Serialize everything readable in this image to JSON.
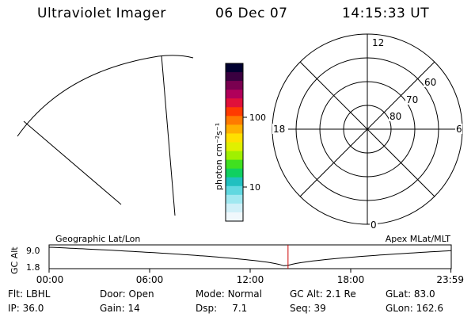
{
  "header": {
    "instrument": "Ultraviolet Imager",
    "date": "06 Dec 07",
    "time": "14:15:33 UT"
  },
  "colorbar": {
    "unit_label": "photon cm⁻²s⁻¹",
    "ticks": [
      {
        "label": "100",
        "value": 100
      },
      {
        "label": "10",
        "value": 10
      }
    ],
    "colors": [
      "#000030",
      "#3a0040",
      "#7a0050",
      "#b0005a",
      "#e0103a",
      "#ff3a00",
      "#ff7a00",
      "#ffb000",
      "#ffe000",
      "#e0f000",
      "#a0f000",
      "#40e020",
      "#10d060",
      "#20c0c0",
      "#60d8e0",
      "#a0e8f0",
      "#d0f0f8",
      "#f0f8fc"
    ]
  },
  "polar_plot": {
    "clock_labels": {
      "top": "12",
      "bottom": "0",
      "left": "18",
      "right": "6"
    },
    "latitude_labels": [
      "80",
      "70",
      "60"
    ]
  },
  "timeline": {
    "left_title": "Geographic Lat/Lon",
    "right_title": "Apex MLat/MLT",
    "axis_label": "GC Alt",
    "y_ticks": [
      "9.0",
      "1.8"
    ],
    "x_ticks": [
      "00:00",
      "06:00",
      "12:00",
      "18:00",
      "23:59"
    ],
    "x_tick_hours": [
      0,
      6,
      12,
      18,
      23.98
    ],
    "current_time_hours": 14.26,
    "perigee_hours": 14.1,
    "colors": {
      "altitude_curve": "#000000",
      "current_time_marker": "#cc0000"
    }
  },
  "status": {
    "row1": [
      {
        "key": "Flt:",
        "value": "LBHL"
      },
      {
        "key": "Door:",
        "value": "Open"
      },
      {
        "key": "Mode:",
        "value": "Normal"
      },
      {
        "key": "GC Alt:",
        "value": "2.1 Re"
      },
      {
        "key": "GLat:",
        "value": "83.0"
      }
    ],
    "row2": [
      {
        "key": "IP:",
        "value": "36.0"
      },
      {
        "key": "Gain:",
        "value": "14"
      },
      {
        "key": "Dsp:",
        "value": "7.1"
      },
      {
        "key": "Seq:",
        "value": "39"
      },
      {
        "key": "GLon:",
        "value": "162.6"
      }
    ]
  }
}
